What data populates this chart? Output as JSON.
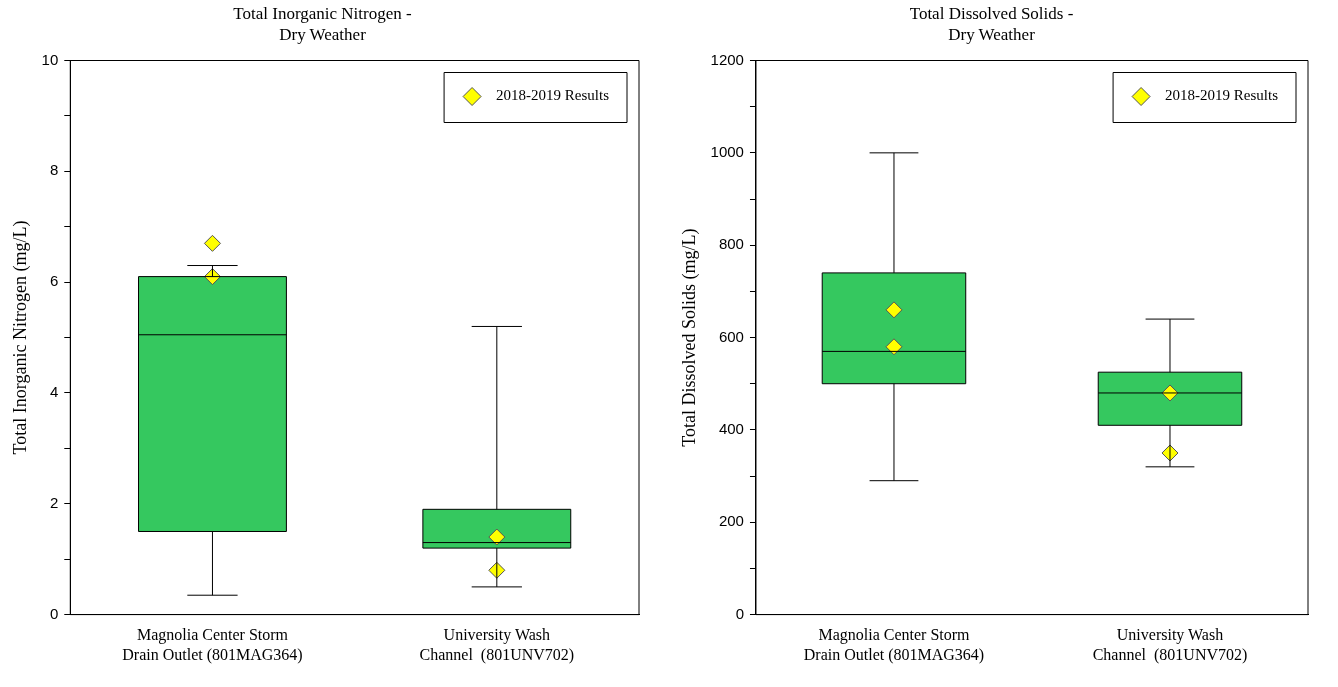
{
  "chart_data": [
    {
      "type": "box",
      "title": "Total Inorganic Nitrogen -\nDry Weather",
      "ylabel": "Total Inorganic Nitrogen (mg/L)",
      "categories": [
        "Magnolia Center Storm\nDrain Outlet (801MAG364)",
        "University Wash\nChannel  (801UNV702)"
      ],
      "series": [
        {
          "color": "#35c85f",
          "boxes": [
            {
              "low": 0.35,
              "q1": 1.5,
              "median": 5.05,
              "q3": 6.1,
              "high": 6.3
            },
            {
              "low": 0.5,
              "q1": 1.2,
              "median": 1.3,
              "q3": 1.9,
              "high": 5.2
            }
          ]
        },
        {
          "type": "scatter",
          "name": "2018-2019 Results",
          "color": "#ffff00",
          "x": [
            "Magnolia Center Storm\nDrain Outlet (801MAG364)",
            "Magnolia Center Storm\nDrain Outlet (801MAG364)",
            "University Wash\nChannel  (801UNV702)",
            "University Wash\nChannel  (801UNV702)"
          ],
          "values": [
            6.1,
            6.7,
            0.8,
            1.4
          ]
        }
      ],
      "ylim": [
        0,
        10
      ],
      "yticks": [
        0,
        {
          "value": 1,
          "label": null
        },
        2,
        {
          "value": 3,
          "label": null
        },
        4,
        {
          "value": 5,
          "label": null
        },
        6,
        {
          "value": 7,
          "label": null
        },
        8,
        {
          "value": 9,
          "label": null
        },
        10
      ],
      "grid": false,
      "legend": "top right",
      "marker": "diamond"
    },
    {
      "type": "box",
      "title": "Total Dissolved Solids -\nDry Weather",
      "ylabel": "Total Dissolved Solids (mg/L)",
      "categories": [
        "Magnolia Center Storm\nDrain Outlet (801MAG364)",
        "University Wash\nChannel  (801UNV702)"
      ],
      "series": [
        {
          "color": "#35c85f",
          "boxes": [
            {
              "low": 290,
              "q1": 500,
              "median": 570,
              "q3": 740,
              "high": 1000
            },
            {
              "low": 320,
              "q1": 410,
              "median": 480,
              "q3": 525,
              "high": 640
            }
          ]
        },
        {
          "type": "scatter",
          "name": "2018-2019 Results",
          "color": "#ffff00",
          "x": [
            "Magnolia Center Storm\nDrain Outlet (801MAG364)",
            "Magnolia Center Storm\nDrain Outlet (801MAG364)",
            "University Wash\nChannel  (801UNV702)",
            "University Wash\nChannel  (801UNV702)"
          ],
          "values": [
            580,
            660,
            480,
            350
          ]
        }
      ],
      "ylim": [
        0,
        1200
      ],
      "yticks": [
        0,
        {
          "value": 100,
          "label": null
        },
        200,
        {
          "value": 300,
          "label": null
        },
        400,
        {
          "value": 500,
          "label": null
        },
        600,
        {
          "value": 700,
          "label": null
        },
        800,
        {
          "value": 900,
          "label": null
        },
        1000,
        {
          "value": 1100,
          "label": null
        },
        1200
      ],
      "grid": false,
      "legend": "top right",
      "marker": "diamond"
    }
  ]
}
